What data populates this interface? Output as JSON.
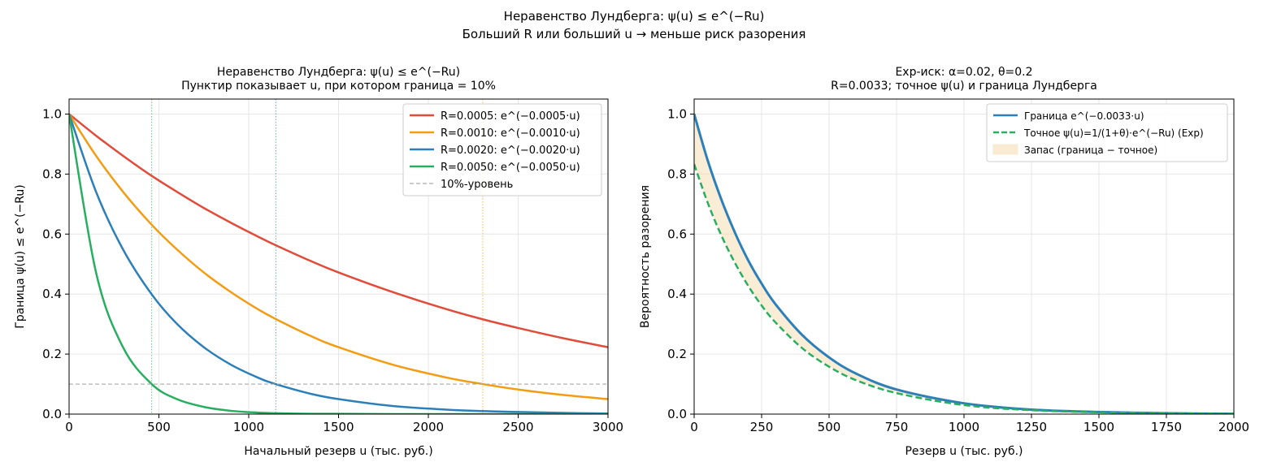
{
  "figure": {
    "suptitle_line1": "Неравенство Лундберга: ψ(u) ≤ e^(−Ru)",
    "suptitle_line2": "Больший R или больший u → меньше риск разорения"
  },
  "chart_data": [
    {
      "type": "line",
      "title_line1": "Неравенство Лундберга: ψ(u) ≤ e^(−Ru)",
      "title_line2": "Пунктир показывает u, при котором граница = 10%",
      "xlabel": "Начальный резерв u (тыс. руб.)",
      "ylabel": "Граница ψ(u) ≤ e^(−Ru)",
      "xlim": [
        0,
        3000
      ],
      "ylim": [
        0,
        1.05
      ],
      "xticks": [
        0,
        500,
        1000,
        1500,
        2000,
        2500,
        3000
      ],
      "xtick_labels": [
        "0",
        "500",
        "1000",
        "1500",
        "2000",
        "2500",
        "3000"
      ],
      "yticks": [
        0.0,
        0.2,
        0.4,
        0.6,
        0.8,
        1.0
      ],
      "ytick_labels": [
        "0.0",
        "0.2",
        "0.4",
        "0.6",
        "0.8",
        "1.0"
      ],
      "grid": true,
      "legend_position": "top-right",
      "x": [
        0,
        150,
        300,
        460,
        600,
        750,
        900,
        1050,
        1150,
        1350,
        1500,
        1800,
        2100,
        2303,
        2500,
        2750,
        3000
      ],
      "series": [
        {
          "name": "R=0.0005: e^(−0.0005·u)",
          "color": "#e04b3a",
          "style": "solid",
          "values": [
            1.0,
            0.928,
            0.861,
            0.794,
            0.741,
            0.687,
            0.638,
            0.592,
            0.563,
            0.509,
            0.472,
            0.407,
            0.35,
            0.316,
            0.287,
            0.253,
            0.223
          ]
        },
        {
          "name": "R=0.0010: e^(−0.0010·u)",
          "color": "#f39c12",
          "style": "solid",
          "values": [
            1.0,
            0.861,
            0.741,
            0.631,
            0.549,
            0.472,
            0.407,
            0.35,
            0.317,
            0.259,
            0.223,
            0.165,
            0.122,
            0.1,
            0.082,
            0.064,
            0.05
          ]
        },
        {
          "name": "R=0.0020: e^(−0.0020·u)",
          "color": "#2c7fb8",
          "style": "solid",
          "values": [
            1.0,
            0.741,
            0.549,
            0.399,
            0.301,
            0.223,
            0.165,
            0.122,
            0.1,
            0.067,
            0.05,
            0.027,
            0.015,
            0.01,
            0.007,
            0.004,
            0.002
          ]
        },
        {
          "name": "R=0.0050: e^(−0.0050·u)",
          "color": "#27ae60",
          "style": "solid",
          "values": [
            1.0,
            0.472,
            0.223,
            0.1,
            0.05,
            0.024,
            0.011,
            0.005,
            0.003,
            0.001,
            0.001,
            0.0,
            0.0,
            0.0,
            0.0,
            0.0,
            0.0
          ]
        },
        {
          "name": "10%-уровень",
          "color": "#aaaaaa",
          "style": "dashed",
          "values": [
            0.1,
            0.1,
            0.1,
            0.1,
            0.1,
            0.1,
            0.1,
            0.1,
            0.1,
            0.1,
            0.1,
            0.1,
            0.1,
            0.1,
            0.1,
            0.1,
            0.1
          ]
        }
      ],
      "vlines": [
        {
          "x": 460,
          "color": "#27ae60"
        },
        {
          "x": 1151,
          "color": "#2c7fb8"
        },
        {
          "x": 2303,
          "color": "#f39c12"
        }
      ]
    },
    {
      "type": "line",
      "title_line1": "Exp-иск: α=0.02, θ=0.2",
      "title_line2": "R=0.0033; точное ψ(u) и граница Лундберга",
      "xlabel": "Резерв u (тыс. руб.)",
      "ylabel": "Вероятность разорения",
      "xlim": [
        0,
        2000
      ],
      "ylim": [
        0,
        1.05
      ],
      "xticks": [
        0,
        250,
        500,
        750,
        1000,
        1250,
        1500,
        1750,
        2000
      ],
      "xtick_labels": [
        "0",
        "250",
        "500",
        "750",
        "1000",
        "1250",
        "1500",
        "1750",
        "2000"
      ],
      "yticks": [
        0.0,
        0.2,
        0.4,
        0.6,
        0.8,
        1.0
      ],
      "ytick_labels": [
        "0.0",
        "0.2",
        "0.4",
        "0.6",
        "0.8",
        "1.0"
      ],
      "grid": true,
      "legend_position": "top-right",
      "x": [
        0,
        50,
        100,
        150,
        200,
        250,
        300,
        400,
        500,
        600,
        750,
        1000,
        1250,
        1500,
        1750,
        2000
      ],
      "series": [
        {
          "name": "Граница e^(−0.0033·u)",
          "color": "#2c7fb8",
          "style": "solid",
          "values": [
            1.0,
            0.846,
            0.717,
            0.607,
            0.513,
            0.435,
            0.368,
            0.264,
            0.189,
            0.135,
            0.082,
            0.036,
            0.015,
            0.007,
            0.003,
            0.001
          ]
        },
        {
          "name": "Точное ψ(u)=1/(1+θ)·e^(−Ru) (Exp)",
          "color": "#27ae60",
          "style": "dashed",
          "values": [
            0.833,
            0.705,
            0.597,
            0.506,
            0.428,
            0.362,
            0.307,
            0.22,
            0.158,
            0.113,
            0.07,
            0.03,
            0.013,
            0.006,
            0.003,
            0.001
          ]
        }
      ],
      "fill_between": {
        "name": "Запас (граница − точное)",
        "color": "#f5deb3"
      }
    }
  ]
}
